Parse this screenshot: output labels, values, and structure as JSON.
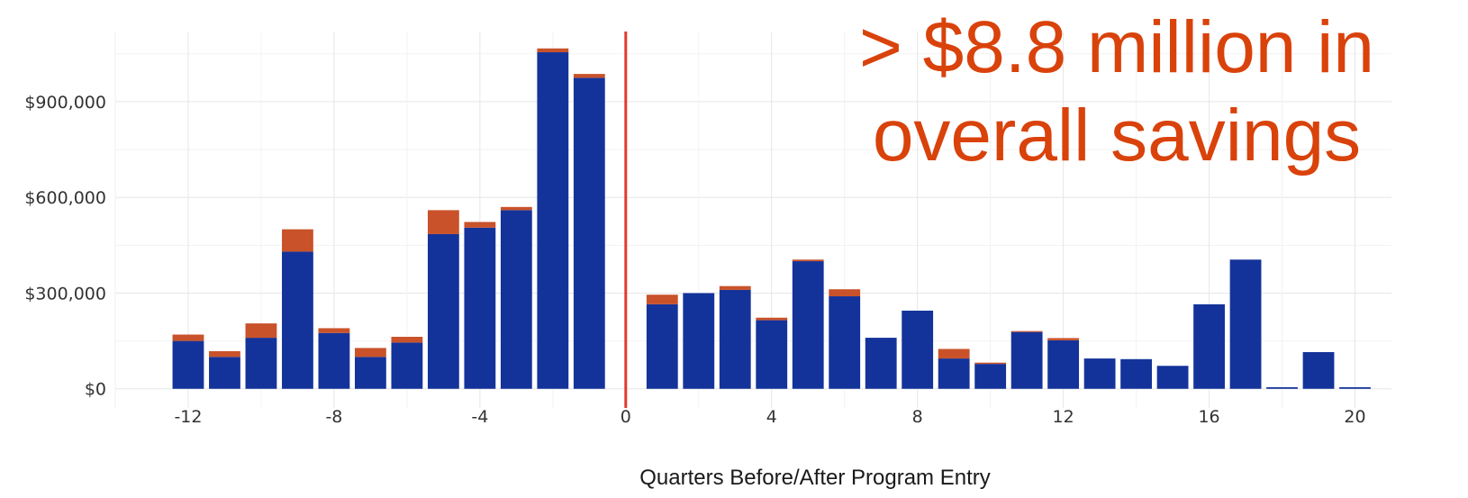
{
  "chart_data": {
    "type": "bar",
    "stacked": true,
    "xlabel": "Quarters Before/After Program Entry",
    "ylabel": "",
    "x_ticks": [
      "-12",
      "-8",
      "-4",
      "0",
      "4",
      "8",
      "12",
      "16",
      "20"
    ],
    "x_tick_values": [
      -12,
      -8,
      -4,
      0,
      4,
      8,
      12,
      16,
      20
    ],
    "y_ticks": [
      "$0",
      "$300,000",
      "$600,000",
      "$900,000"
    ],
    "y_tick_values": [
      0,
      300000,
      600000,
      900000
    ],
    "xlim": [
      -14,
      21
    ],
    "ylim": [
      -60000,
      1120000
    ],
    "grid": true,
    "reference_line": {
      "x": 0,
      "color": "#e03a2f"
    },
    "x": [
      -12,
      -11,
      -10,
      -9,
      -8,
      -7,
      -6,
      -5,
      -4,
      -3,
      -2,
      -1,
      1,
      2,
      3,
      4,
      5,
      6,
      7,
      8,
      9,
      10,
      11,
      12,
      13,
      14,
      15,
      16,
      17,
      18,
      19,
      20
    ],
    "series": [
      {
        "color": "#14339a",
        "values": [
          150000,
          100000,
          160000,
          430000,
          175000,
          100000,
          145000,
          485000,
          505000,
          560000,
          1055000,
          975000,
          265000,
          300000,
          310000,
          215000,
          400000,
          290000,
          160000,
          245000,
          95000,
          78000,
          178000,
          152000,
          95000,
          93000,
          72000,
          265000,
          405000,
          5000,
          115000,
          5000
        ]
      },
      {
        "color": "#c9522a",
        "values": [
          20000,
          18000,
          45000,
          70000,
          15000,
          28000,
          18000,
          75000,
          18000,
          10000,
          12000,
          12000,
          30000,
          0,
          12000,
          8000,
          5000,
          22000,
          0,
          0,
          30000,
          4000,
          3000,
          7000,
          0,
          0,
          0,
          0,
          0,
          0,
          0,
          0
        ]
      }
    ],
    "annotation": {
      "lines": [
        "> $8.8 million in",
        "overall savings"
      ],
      "color": "#d9420b"
    }
  }
}
